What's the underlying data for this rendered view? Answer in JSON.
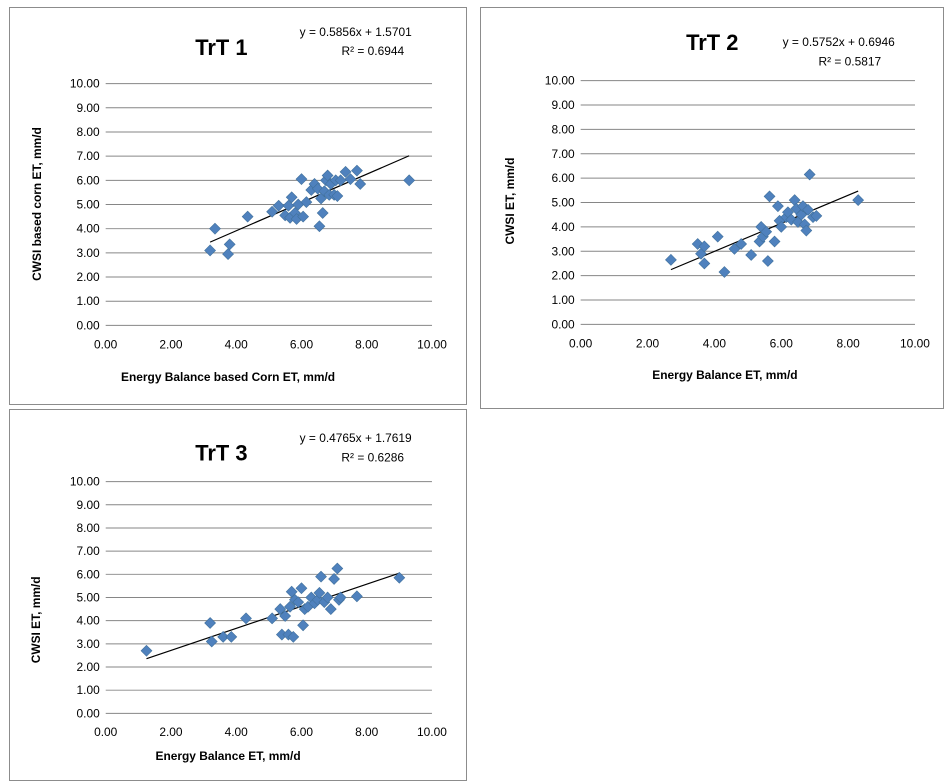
{
  "colors": {
    "marker": "#4F81BD",
    "grid": "#868686",
    "trendline": "#000000"
  },
  "chart_data": [
    {
      "type": "scatter",
      "title": "TrT 1",
      "equation": "y = 0.5856x + 1.5701",
      "r2": "R² = 0.6944",
      "xlabel": "Energy Balance  based Corn ET, mm/d",
      "ylabel": "CWSI based corn ET, mm/d",
      "xlim": [
        0,
        10
      ],
      "ylim": [
        0,
        10
      ],
      "xticks": [
        "0.00",
        "2.00",
        "4.00",
        "6.00",
        "8.00",
        "10.00"
      ],
      "yticks": [
        "0.00",
        "1.00",
        "2.00",
        "3.00",
        "4.00",
        "5.00",
        "6.00",
        "7.00",
        "8.00",
        "9.00",
        "10.00"
      ],
      "trendline": {
        "slope": 0.5856,
        "intercept": 1.5701,
        "x_range": [
          3.2,
          9.3
        ]
      },
      "points": [
        [
          3.2,
          3.1
        ],
        [
          3.35,
          4.0
        ],
        [
          3.75,
          2.95
        ],
        [
          3.8,
          3.35
        ],
        [
          4.35,
          4.5
        ],
        [
          5.1,
          4.7
        ],
        [
          5.3,
          4.95
        ],
        [
          5.5,
          4.55
        ],
        [
          5.6,
          4.95
        ],
        [
          5.65,
          4.45
        ],
        [
          5.7,
          5.3
        ],
        [
          5.8,
          4.65
        ],
        [
          5.85,
          4.4
        ],
        [
          5.9,
          5.0
        ],
        [
          6.0,
          6.05
        ],
        [
          6.05,
          4.5
        ],
        [
          6.15,
          5.1
        ],
        [
          6.3,
          5.6
        ],
        [
          6.4,
          5.85
        ],
        [
          6.5,
          5.65
        ],
        [
          6.55,
          4.1
        ],
        [
          6.6,
          5.25
        ],
        [
          6.65,
          4.65
        ],
        [
          6.7,
          5.55
        ],
        [
          6.75,
          6.0
        ],
        [
          6.8,
          6.2
        ],
        [
          6.85,
          5.4
        ],
        [
          6.9,
          5.85
        ],
        [
          7.0,
          5.4
        ],
        [
          7.05,
          6.0
        ],
        [
          7.1,
          5.35
        ],
        [
          7.2,
          6.0
        ],
        [
          7.35,
          6.35
        ],
        [
          7.5,
          6.05
        ],
        [
          7.7,
          6.4
        ],
        [
          7.8,
          5.85
        ],
        [
          9.3,
          6.0
        ]
      ]
    },
    {
      "type": "scatter",
      "title": "TrT 2",
      "equation": "y = 0.5752x + 0.6946",
      "r2": "R² = 0.5817",
      "xlabel": "Energy Balance ET, mm/d",
      "ylabel": "CWSI ET,  mm/d",
      "xlim": [
        0,
        10
      ],
      "ylim": [
        0,
        10
      ],
      "xticks": [
        "0.00",
        "2.00",
        "4.00",
        "6.00",
        "8.00",
        "10.00"
      ],
      "yticks": [
        "0.00",
        "1.00",
        "2.00",
        "3.00",
        "4.00",
        "5.00",
        "6.00",
        "7.00",
        "8.00",
        "9.00",
        "10.00"
      ],
      "trendline": {
        "slope": 0.5752,
        "intercept": 0.6946,
        "x_range": [
          2.7,
          8.3
        ]
      },
      "points": [
        [
          2.7,
          2.65
        ],
        [
          3.5,
          3.3
        ],
        [
          3.6,
          2.9
        ],
        [
          3.7,
          3.2
        ],
        [
          3.7,
          2.5
        ],
        [
          4.1,
          3.6
        ],
        [
          4.3,
          2.15
        ],
        [
          4.6,
          3.1
        ],
        [
          4.8,
          3.3
        ],
        [
          5.1,
          2.85
        ],
        [
          5.35,
          3.4
        ],
        [
          5.4,
          4.0
        ],
        [
          5.45,
          3.6
        ],
        [
          5.55,
          3.8
        ],
        [
          5.6,
          2.6
        ],
        [
          5.65,
          5.25
        ],
        [
          5.8,
          3.4
        ],
        [
          5.9,
          4.85
        ],
        [
          5.95,
          4.25
        ],
        [
          6.0,
          4.0
        ],
        [
          6.15,
          4.4
        ],
        [
          6.2,
          4.6
        ],
        [
          6.3,
          4.3
        ],
        [
          6.4,
          5.1
        ],
        [
          6.45,
          4.75
        ],
        [
          6.5,
          4.2
        ],
        [
          6.6,
          4.5
        ],
        [
          6.65,
          4.85
        ],
        [
          6.7,
          4.1
        ],
        [
          6.75,
          3.85
        ],
        [
          6.8,
          4.7
        ],
        [
          6.85,
          6.15
        ],
        [
          6.95,
          4.4
        ],
        [
          7.05,
          4.45
        ],
        [
          8.3,
          5.1
        ]
      ]
    },
    {
      "type": "scatter",
      "title": "TrT 3",
      "equation": "y = 0.4765x + 1.7619",
      "r2": "R² = 0.6286",
      "xlabel": "Energy Balance ET, mm/d",
      "ylabel": "CWSI ET, mm/d",
      "xlim": [
        0,
        10
      ],
      "ylim": [
        0,
        10
      ],
      "xticks": [
        "0.00",
        "2.00",
        "4.00",
        "6.00",
        "8.00",
        "10.00"
      ],
      "yticks": [
        "0.00",
        "1.00",
        "2.00",
        "3.00",
        "4.00",
        "5.00",
        "6.00",
        "7.00",
        "8.00",
        "9.00",
        "10.00"
      ],
      "trendline": {
        "slope": 0.4765,
        "intercept": 1.7619,
        "x_range": [
          1.25,
          9.0
        ]
      },
      "points": [
        [
          1.25,
          2.7
        ],
        [
          3.2,
          3.9
        ],
        [
          3.25,
          3.1
        ],
        [
          3.6,
          3.3
        ],
        [
          3.85,
          3.3
        ],
        [
          4.3,
          4.1
        ],
        [
          5.1,
          4.1
        ],
        [
          5.35,
          4.5
        ],
        [
          5.4,
          3.4
        ],
        [
          5.5,
          4.2
        ],
        [
          5.6,
          3.4
        ],
        [
          5.65,
          4.6
        ],
        [
          5.7,
          5.25
        ],
        [
          5.75,
          3.3
        ],
        [
          5.8,
          4.9
        ],
        [
          5.9,
          4.8
        ],
        [
          6.0,
          5.4
        ],
        [
          6.05,
          3.8
        ],
        [
          6.1,
          4.5
        ],
        [
          6.2,
          4.6
        ],
        [
          6.3,
          5.0
        ],
        [
          6.4,
          4.75
        ],
        [
          6.5,
          4.9
        ],
        [
          6.55,
          5.2
        ],
        [
          6.6,
          5.9
        ],
        [
          6.7,
          4.8
        ],
        [
          6.8,
          5.0
        ],
        [
          6.9,
          4.5
        ],
        [
          7.0,
          5.8
        ],
        [
          7.1,
          6.25
        ],
        [
          7.15,
          4.9
        ],
        [
          7.2,
          5.0
        ],
        [
          7.7,
          5.05
        ],
        [
          9.0,
          5.85
        ]
      ]
    }
  ]
}
